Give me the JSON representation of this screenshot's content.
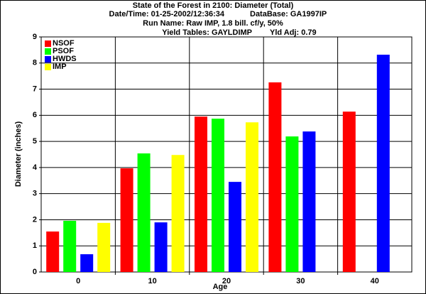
{
  "chart_data": {
    "type": "bar",
    "title": "State of the Forest in 2100: Diameter (Total)",
    "header": {
      "date_time": "Date/Time: 01-25-2002/12:36:34",
      "database": "DataBase: GA1997IP",
      "run_name": "Run Name: Raw IMP, 1.8 bill. cf/y, 50%",
      "yield_tables": "Yield Tables: GAYLDIMP",
      "yld_adj": "Yld Adj: 0.79"
    },
    "x_label": "Age",
    "y_label": "Diameter (inches)",
    "categories": [
      "0",
      "10",
      "20",
      "30",
      "40"
    ],
    "series": [
      {
        "name": "NSOF",
        "color": "#ff0000",
        "values": [
          1.55,
          3.97,
          5.95,
          7.26,
          6.14
        ]
      },
      {
        "name": "PSOF",
        "color": "#00ff00",
        "values": [
          1.96,
          4.54,
          5.87,
          5.19,
          null
        ]
      },
      {
        "name": "HWDS",
        "color": "#0000ff",
        "values": [
          0.68,
          1.9,
          3.45,
          5.38,
          8.32
        ]
      },
      {
        "name": "IMP",
        "color": "#ffff00",
        "values": [
          1.88,
          4.48,
          5.73,
          null,
          null
        ]
      }
    ],
    "ylim": [
      0,
      9
    ],
    "yticks": [
      0,
      1,
      2,
      3,
      4,
      5,
      6,
      7,
      8,
      9
    ],
    "grid": true,
    "legend": "top-left"
  }
}
